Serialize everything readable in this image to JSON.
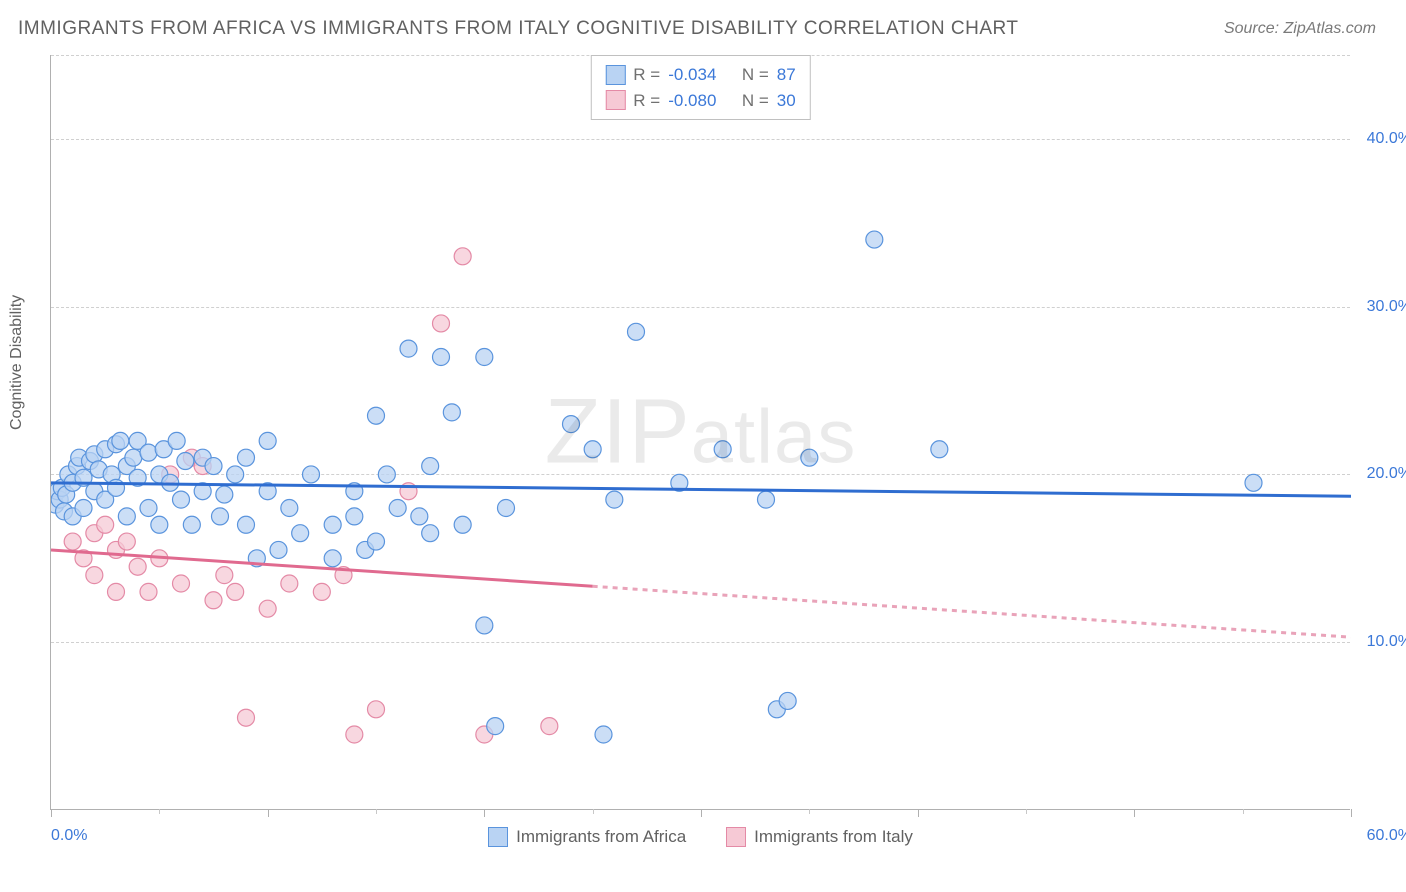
{
  "title": "IMMIGRANTS FROM AFRICA VS IMMIGRANTS FROM ITALY COGNITIVE DISABILITY CORRELATION CHART",
  "source": "Source: ZipAtlas.com",
  "yaxis_label": "Cognitive Disability",
  "watermark": "ZIPatlas",
  "chart": {
    "type": "scatter",
    "xlim": [
      0,
      60
    ],
    "ylim": [
      0,
      45
    ],
    "x_tick_labels": {
      "min": "0.0%",
      "max": "60.0%"
    },
    "y_gridlines": [
      10,
      20,
      30,
      40
    ],
    "y_tick_labels": [
      "10.0%",
      "20.0%",
      "30.0%",
      "40.0%"
    ],
    "x_major_ticks": [
      0,
      10,
      20,
      30,
      40,
      50,
      60
    ],
    "x_minor_ticks": [
      5,
      15,
      25,
      35,
      45,
      55
    ],
    "marker_radius": 8.5,
    "marker_stroke_width": 1.2,
    "trend_line_width": 3,
    "trend_dash": "5,5",
    "background_color": "#ffffff",
    "grid_color": "#d0d0d0",
    "axis_color": "#b0b0b0",
    "text_color": "#616161",
    "tick_label_color": "#3b78d8"
  },
  "series": {
    "africa": {
      "label": "Immigrants from Africa",
      "fill": "#b9d3f3",
      "stroke": "#5a94dd",
      "R": "-0.034",
      "N": "87",
      "trend": {
        "x0": 0,
        "y0": 19.5,
        "x1": 60,
        "y1": 18.7,
        "solid_until": 60
      },
      "points": [
        [
          0.2,
          18.2
        ],
        [
          0.3,
          19.0
        ],
        [
          0.4,
          18.5
        ],
        [
          0.5,
          19.2
        ],
        [
          0.6,
          17.8
        ],
        [
          0.7,
          18.8
        ],
        [
          0.8,
          20.0
        ],
        [
          1.0,
          19.5
        ],
        [
          1.0,
          17.5
        ],
        [
          1.2,
          20.5
        ],
        [
          1.3,
          21.0
        ],
        [
          1.5,
          18.0
        ],
        [
          1.5,
          19.8
        ],
        [
          1.8,
          20.8
        ],
        [
          2.0,
          21.2
        ],
        [
          2.0,
          19.0
        ],
        [
          2.2,
          20.3
        ],
        [
          2.5,
          21.5
        ],
        [
          2.5,
          18.5
        ],
        [
          2.8,
          20.0
        ],
        [
          3.0,
          21.8
        ],
        [
          3.0,
          19.2
        ],
        [
          3.2,
          22.0
        ],
        [
          3.5,
          20.5
        ],
        [
          3.5,
          17.5
        ],
        [
          3.8,
          21.0
        ],
        [
          4.0,
          19.8
        ],
        [
          4.0,
          22.0
        ],
        [
          4.5,
          21.3
        ],
        [
          4.5,
          18.0
        ],
        [
          5.0,
          20.0
        ],
        [
          5.0,
          17.0
        ],
        [
          5.2,
          21.5
        ],
        [
          5.5,
          19.5
        ],
        [
          5.8,
          22.0
        ],
        [
          6.0,
          18.5
        ],
        [
          6.2,
          20.8
        ],
        [
          6.5,
          17.0
        ],
        [
          7.0,
          19.0
        ],
        [
          7.0,
          21.0
        ],
        [
          7.5,
          20.5
        ],
        [
          7.8,
          17.5
        ],
        [
          8.0,
          18.8
        ],
        [
          8.5,
          20.0
        ],
        [
          9.0,
          21.0
        ],
        [
          9.0,
          17.0
        ],
        [
          9.5,
          15.0
        ],
        [
          10.0,
          22.0
        ],
        [
          10.0,
          19.0
        ],
        [
          10.5,
          15.5
        ],
        [
          11.0,
          18.0
        ],
        [
          11.5,
          16.5
        ],
        [
          12.0,
          20.0
        ],
        [
          13.0,
          17.0
        ],
        [
          13.0,
          15.0
        ],
        [
          14.0,
          19.0
        ],
        [
          14.0,
          17.5
        ],
        [
          14.5,
          15.5
        ],
        [
          15.0,
          16.0
        ],
        [
          15.0,
          23.5
        ],
        [
          15.5,
          20.0
        ],
        [
          16.0,
          18.0
        ],
        [
          16.5,
          27.5
        ],
        [
          17.0,
          17.5
        ],
        [
          17.5,
          20.5
        ],
        [
          17.5,
          16.5
        ],
        [
          18.0,
          27.0
        ],
        [
          18.5,
          23.7
        ],
        [
          19.0,
          17.0
        ],
        [
          20.0,
          27.0
        ],
        [
          20.0,
          11.0
        ],
        [
          20.5,
          5.0
        ],
        [
          21.0,
          18.0
        ],
        [
          24.0,
          23.0
        ],
        [
          25.0,
          21.5
        ],
        [
          25.5,
          4.5
        ],
        [
          26.0,
          18.5
        ],
        [
          27.0,
          28.5
        ],
        [
          29.0,
          19.5
        ],
        [
          31.0,
          21.5
        ],
        [
          33.0,
          18.5
        ],
        [
          33.5,
          6.0
        ],
        [
          34.0,
          6.5
        ],
        [
          35.0,
          21.0
        ],
        [
          38.0,
          34.0
        ],
        [
          41.0,
          21.5
        ],
        [
          55.5,
          19.5
        ]
      ]
    },
    "italy": {
      "label": "Immigrants from Italy",
      "fill": "#f6c9d5",
      "stroke": "#e48aa6",
      "R": "-0.080",
      "N": "30",
      "trend": {
        "x0": 0,
        "y0": 15.5,
        "x1": 60,
        "y1": 10.3,
        "solid_until": 25
      },
      "points": [
        [
          1.0,
          16.0
        ],
        [
          1.5,
          15.0
        ],
        [
          2.0,
          16.5
        ],
        [
          2.0,
          14.0
        ],
        [
          2.5,
          17.0
        ],
        [
          3.0,
          15.5
        ],
        [
          3.0,
          13.0
        ],
        [
          3.5,
          16.0
        ],
        [
          4.0,
          14.5
        ],
        [
          4.5,
          13.0
        ],
        [
          5.0,
          15.0
        ],
        [
          5.5,
          20.0
        ],
        [
          6.0,
          13.5
        ],
        [
          6.5,
          21.0
        ],
        [
          7.0,
          20.5
        ],
        [
          7.5,
          12.5
        ],
        [
          8.0,
          14.0
        ],
        [
          8.5,
          13.0
        ],
        [
          9.0,
          5.5
        ],
        [
          10.0,
          12.0
        ],
        [
          11.0,
          13.5
        ],
        [
          12.5,
          13.0
        ],
        [
          13.5,
          14.0
        ],
        [
          14.0,
          4.5
        ],
        [
          15.0,
          6.0
        ],
        [
          16.5,
          19.0
        ],
        [
          18.0,
          29.0
        ],
        [
          19.0,
          33.0
        ],
        [
          20.0,
          4.5
        ],
        [
          23.0,
          5.0
        ]
      ]
    }
  }
}
